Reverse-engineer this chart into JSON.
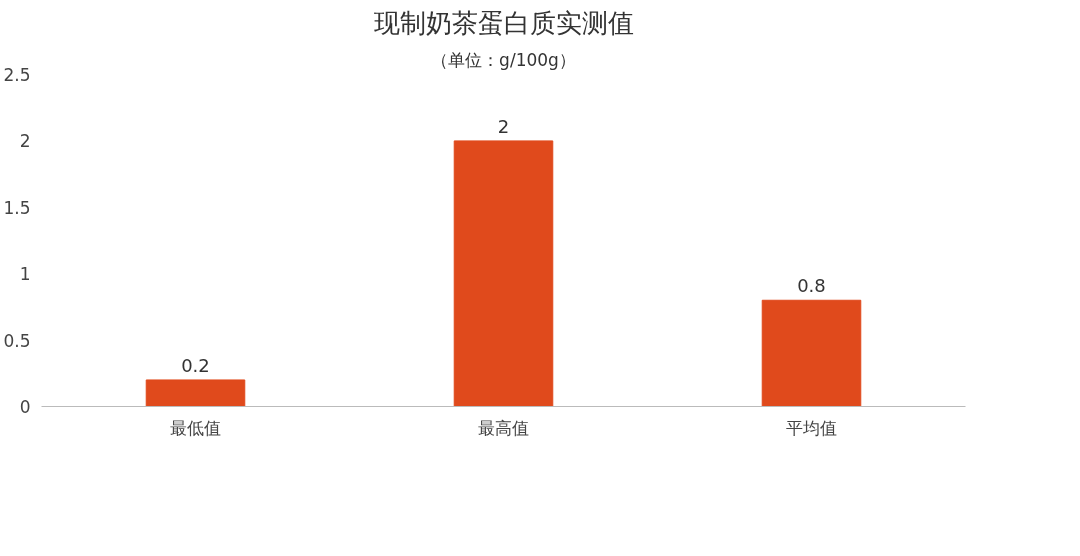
{
  "chart_data": {
    "type": "bar",
    "title": "现制奶茶蛋白质实测值",
    "subtitle": "（单位：g/100g）",
    "categories": [
      "最低值",
      "最高值",
      "平均值"
    ],
    "values": [
      0.2,
      2,
      0.8
    ],
    "color": "#e04a1c",
    "ylim": [
      0,
      2.5
    ],
    "yticks": [
      0,
      0.5,
      1,
      1.5,
      2,
      2.5
    ],
    "grid": false,
    "data_labels": true
  }
}
